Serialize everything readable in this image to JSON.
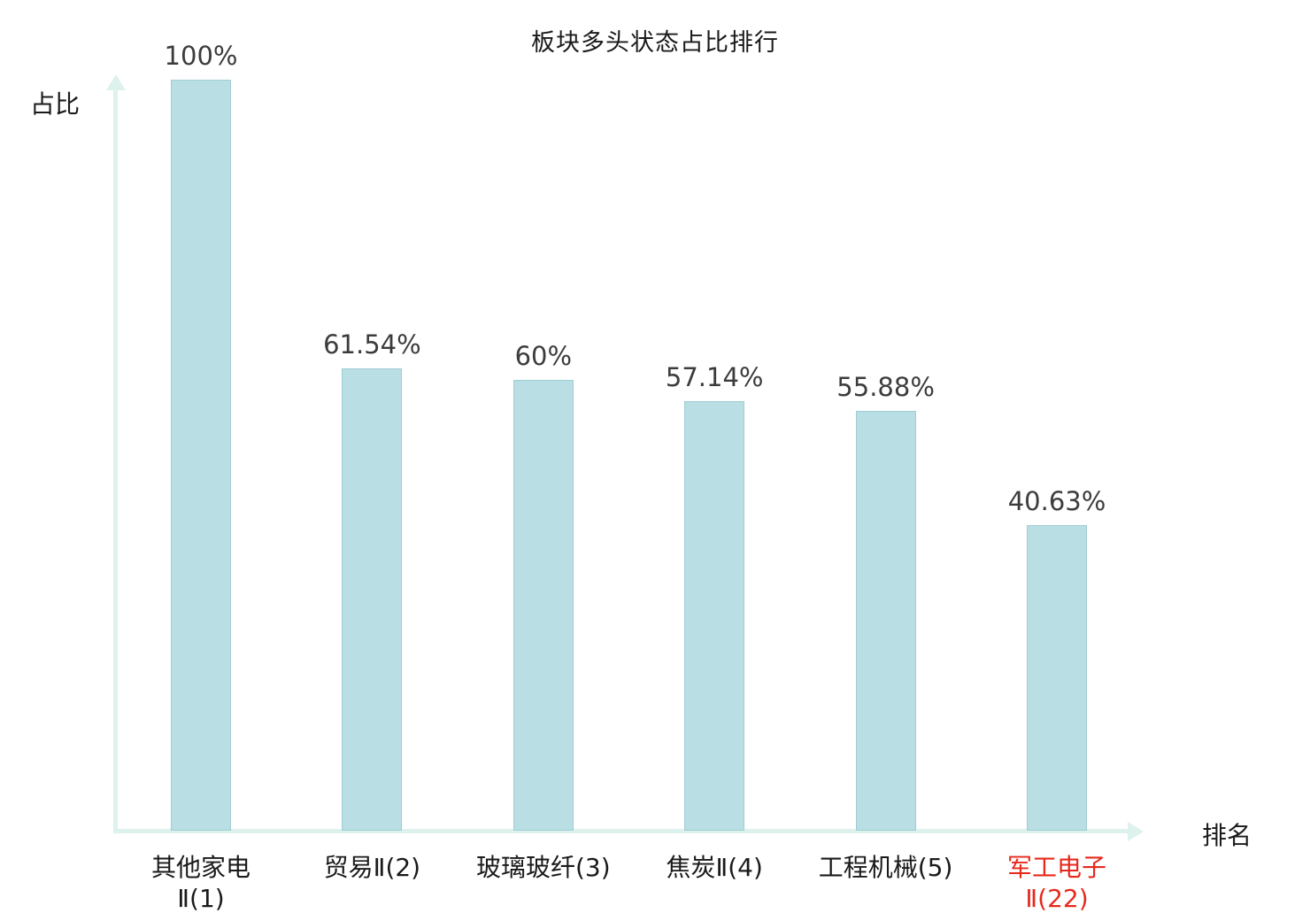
{
  "chart_data": {
    "type": "bar",
    "title": "板块多头状态占比排行",
    "ylabel": "占比",
    "xlabel": "排名",
    "categories": [
      "其他家电\nⅡ(1)",
      "贸易Ⅱ(2)",
      "玻璃玻纤(3)",
      "焦炭Ⅱ(4)",
      "工程机械(5)",
      "军工电子\nⅡ(22)"
    ],
    "values": [
      100,
      61.54,
      60,
      57.14,
      55.88,
      40.63
    ],
    "value_labels": [
      "100%",
      "61.54%",
      "60%",
      "57.14%",
      "55.88%",
      "40.63%"
    ],
    "highlight_index": 5,
    "ylim": [
      0,
      100
    ],
    "grid": false,
    "legend": false,
    "colors": {
      "bar_fill": "#b9dfe4",
      "bar_border": "#9ecdd4",
      "axis": "#ddf2ec",
      "value_text": "#3c3c3c",
      "category_text": "#1a1a1a",
      "highlight_text": "#e8291c"
    }
  }
}
